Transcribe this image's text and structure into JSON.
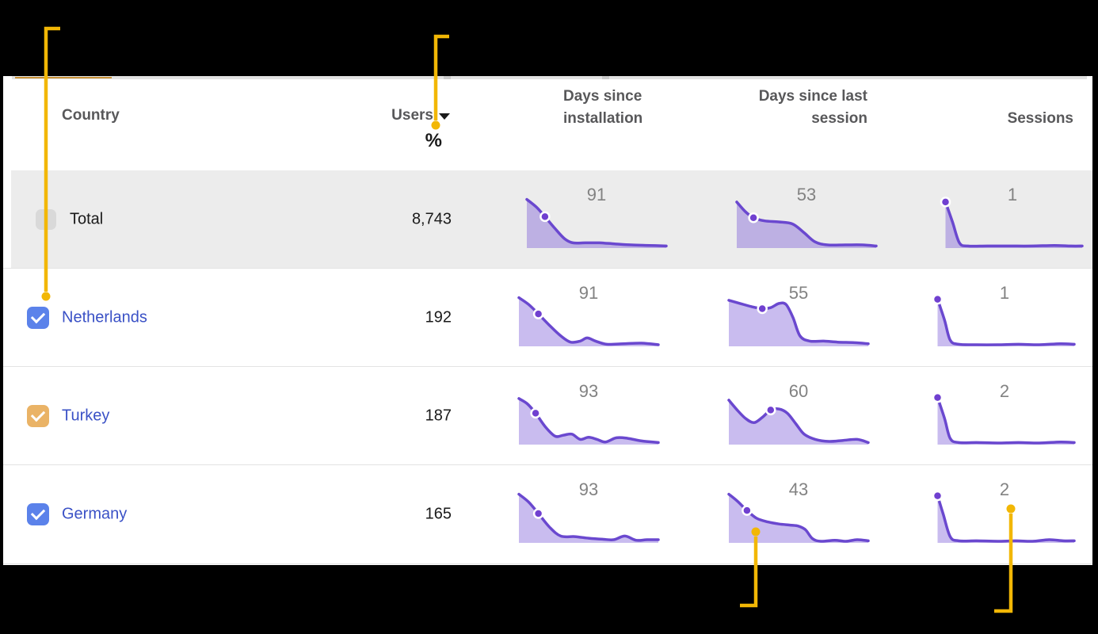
{
  "table": {
    "headers": {
      "country": "Country",
      "users": "Users",
      "users_sub": "%",
      "col3_line1": "Days since",
      "col3_line2": "installation",
      "col4_line1": "Days since last",
      "col4_line2": "session",
      "col5": "Sessions"
    },
    "rows": [
      {
        "country": "Total",
        "link": false,
        "checkbox": "empty-gray",
        "users": "8,743",
        "sparks": [
          {
            "label": "91",
            "marker": 2,
            "points": [
              [
                0,
                0.93
              ],
              [
                0.07,
                0.78
              ],
              [
                0.13,
                0.6
              ],
              [
                0.2,
                0.38
              ],
              [
                0.27,
                0.18
              ],
              [
                0.33,
                0.1
              ],
              [
                0.42,
                0.1
              ],
              [
                0.52,
                0.1
              ],
              [
                0.63,
                0.08
              ],
              [
                0.75,
                0.06
              ],
              [
                0.88,
                0.05
              ],
              [
                1,
                0.04
              ]
            ]
          },
          {
            "label": "53",
            "marker": 2,
            "points": [
              [
                0,
                0.88
              ],
              [
                0.06,
                0.7
              ],
              [
                0.12,
                0.58
              ],
              [
                0.2,
                0.52
              ],
              [
                0.3,
                0.5
              ],
              [
                0.4,
                0.46
              ],
              [
                0.48,
                0.3
              ],
              [
                0.56,
                0.12
              ],
              [
                0.65,
                0.06
              ],
              [
                0.78,
                0.06
              ],
              [
                0.9,
                0.06
              ],
              [
                1,
                0.04
              ]
            ]
          },
          {
            "label": "1",
            "marker": 0,
            "points": [
              [
                0.02,
                0.88
              ],
              [
                0.07,
                0.5
              ],
              [
                0.12,
                0.1
              ],
              [
                0.18,
                0.04
              ],
              [
                0.32,
                0.04
              ],
              [
                0.48,
                0.04
              ],
              [
                0.64,
                0.04
              ],
              [
                0.8,
                0.05
              ],
              [
                0.92,
                0.04
              ],
              [
                1,
                0.04
              ]
            ]
          }
        ]
      },
      {
        "country": "Netherlands",
        "link": true,
        "checkbox": "checked-blue",
        "users": "192",
        "sparks": [
          {
            "label": "91",
            "marker": 2,
            "points": [
              [
                0,
                0.93
              ],
              [
                0.07,
                0.8
              ],
              [
                0.14,
                0.62
              ],
              [
                0.22,
                0.4
              ],
              [
                0.3,
                0.2
              ],
              [
                0.37,
                0.08
              ],
              [
                0.44,
                0.1
              ],
              [
                0.49,
                0.16
              ],
              [
                0.55,
                0.1
              ],
              [
                0.63,
                0.04
              ],
              [
                0.75,
                0.05
              ],
              [
                0.88,
                0.06
              ],
              [
                1,
                0.03
              ]
            ]
          },
          {
            "label": "55",
            "marker": 3,
            "points": [
              [
                0,
                0.88
              ],
              [
                0.08,
                0.82
              ],
              [
                0.16,
                0.76
              ],
              [
                0.24,
                0.72
              ],
              [
                0.3,
                0.74
              ],
              [
                0.36,
                0.82
              ],
              [
                0.41,
                0.8
              ],
              [
                0.46,
                0.55
              ],
              [
                0.51,
                0.2
              ],
              [
                0.58,
                0.1
              ],
              [
                0.68,
                0.1
              ],
              [
                0.78,
                0.08
              ],
              [
                0.9,
                0.07
              ],
              [
                1,
                0.05
              ]
            ]
          },
          {
            "label": "1",
            "marker": 0,
            "points": [
              [
                0.02,
                0.9
              ],
              [
                0.07,
                0.5
              ],
              [
                0.11,
                0.12
              ],
              [
                0.17,
                0.04
              ],
              [
                0.3,
                0.03
              ],
              [
                0.45,
                0.03
              ],
              [
                0.6,
                0.04
              ],
              [
                0.75,
                0.03
              ],
              [
                0.9,
                0.05
              ],
              [
                1,
                0.04
              ]
            ]
          }
        ]
      },
      {
        "country": "Turkey",
        "link": true,
        "checkbox": "checked-orange",
        "users": "187",
        "sparks": [
          {
            "label": "93",
            "marker": 2,
            "points": [
              [
                0,
                0.88
              ],
              [
                0.06,
                0.78
              ],
              [
                0.12,
                0.6
              ],
              [
                0.19,
                0.34
              ],
              [
                0.26,
                0.16
              ],
              [
                0.32,
                0.18
              ],
              [
                0.38,
                0.2
              ],
              [
                0.44,
                0.1
              ],
              [
                0.5,
                0.14
              ],
              [
                0.56,
                0.1
              ],
              [
                0.62,
                0.05
              ],
              [
                0.7,
                0.13
              ],
              [
                0.78,
                0.12
              ],
              [
                0.88,
                0.07
              ],
              [
                1,
                0.04
              ]
            ]
          },
          {
            "label": "60",
            "marker": 5,
            "points": [
              [
                0,
                0.85
              ],
              [
                0.06,
                0.66
              ],
              [
                0.12,
                0.5
              ],
              [
                0.18,
                0.42
              ],
              [
                0.24,
                0.52
              ],
              [
                0.3,
                0.66
              ],
              [
                0.36,
                0.68
              ],
              [
                0.42,
                0.6
              ],
              [
                0.48,
                0.4
              ],
              [
                0.54,
                0.2
              ],
              [
                0.62,
                0.1
              ],
              [
                0.72,
                0.06
              ],
              [
                0.82,
                0.08
              ],
              [
                0.92,
                0.1
              ],
              [
                1,
                0.04
              ]
            ]
          },
          {
            "label": "2",
            "marker": 0,
            "points": [
              [
                0.02,
                0.9
              ],
              [
                0.07,
                0.5
              ],
              [
                0.11,
                0.12
              ],
              [
                0.17,
                0.04
              ],
              [
                0.3,
                0.04
              ],
              [
                0.45,
                0.03
              ],
              [
                0.6,
                0.04
              ],
              [
                0.75,
                0.03
              ],
              [
                0.9,
                0.05
              ],
              [
                1,
                0.04
              ]
            ]
          }
        ]
      },
      {
        "country": "Germany",
        "link": true,
        "checkbox": "checked-blue",
        "users": "165",
        "sparks": [
          {
            "label": "93",
            "marker": 2,
            "points": [
              [
                0,
                0.93
              ],
              [
                0.07,
                0.78
              ],
              [
                0.14,
                0.56
              ],
              [
                0.22,
                0.3
              ],
              [
                0.3,
                0.13
              ],
              [
                0.4,
                0.12
              ],
              [
                0.5,
                0.09
              ],
              [
                0.6,
                0.07
              ],
              [
                0.68,
                0.06
              ],
              [
                0.76,
                0.13
              ],
              [
                0.84,
                0.05
              ],
              [
                0.92,
                0.06
              ],
              [
                1,
                0.06
              ]
            ]
          },
          {
            "label": "43",
            "marker": 2,
            "points": [
              [
                0,
                0.93
              ],
              [
                0.06,
                0.8
              ],
              [
                0.13,
                0.62
              ],
              [
                0.2,
                0.47
              ],
              [
                0.28,
                0.4
              ],
              [
                0.36,
                0.36
              ],
              [
                0.44,
                0.34
              ],
              [
                0.5,
                0.32
              ],
              [
                0.55,
                0.25
              ],
              [
                0.6,
                0.08
              ],
              [
                0.66,
                0.03
              ],
              [
                0.76,
                0.05
              ],
              [
                0.84,
                0.03
              ],
              [
                0.92,
                0.06
              ],
              [
                1,
                0.04
              ]
            ]
          },
          {
            "label": "2",
            "marker": 0,
            "points": [
              [
                0.02,
                0.9
              ],
              [
                0.06,
                0.55
              ],
              [
                0.11,
                0.12
              ],
              [
                0.17,
                0.04
              ],
              [
                0.3,
                0.04
              ],
              [
                0.45,
                0.03
              ],
              [
                0.58,
                0.04
              ],
              [
                0.7,
                0.03
              ],
              [
                0.82,
                0.06
              ],
              [
                0.92,
                0.04
              ],
              [
                1,
                0.04
              ]
            ]
          }
        ]
      }
    ]
  },
  "colors": {
    "annotation": "#f2b705",
    "spark_line": "#6a48cf",
    "spark_fill": "rgba(113,80,212,0.38)",
    "marker_fill": "#7040d0",
    "link": "#3a51c6",
    "checkbox_blue": "#5b82ea",
    "checkbox_orange": "#eab366",
    "checkbox_disabled": "#d9d9d9",
    "row_total_bg": "#ececec",
    "header_text": "#58585a",
    "spark_label": "#828282",
    "strip_accent": "#c89136"
  }
}
